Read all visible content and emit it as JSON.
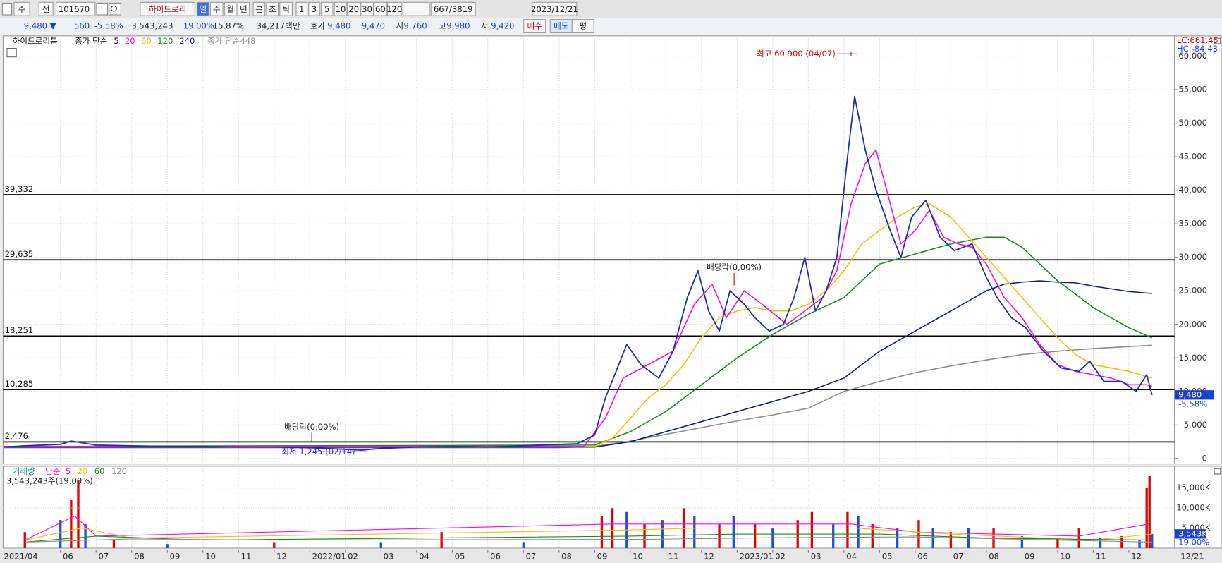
{
  "toolbar": {
    "items": [
      "주",
      "전",
      "101670",
      "하이드로리",
      "일",
      "주",
      "월",
      "년",
      "분",
      "초",
      "틱",
      "1",
      "3",
      "5",
      "10",
      "20",
      "30",
      "60",
      "120",
      "667/3819",
      "2023/12/21"
    ]
  },
  "info_bar": {
    "items": [
      "9,480 ▼",
      "560",
      "-5.58%",
      "3,543,243",
      "19.00%",
      "15.87%",
      "34,217백만",
      "호가",
      "9,480",
      "9,470",
      "시",
      "9,760",
      "고",
      "9,980",
      "저",
      "9,420",
      "매수",
      "매도",
      "평"
    ]
  },
  "chart_data": [
    {
      "type": "line",
      "title": "하이드로리튬",
      "legend_prefix": "종가 단순",
      "x_start_label": "2021/04",
      "x_end_label": "12/21",
      "lc_label": "LC:661.45",
      "hc_label": "HC:-84.43",
      "xlim": [
        0.39,
        33.28
      ],
      "xticks": [
        {
          "value": 2,
          "label": "06"
        },
        {
          "value": 3,
          "label": "07"
        },
        {
          "value": 4,
          "label": "08"
        },
        {
          "value": 5,
          "label": "09"
        },
        {
          "value": 6,
          "label": "10"
        },
        {
          "value": 7,
          "label": "11"
        },
        {
          "value": 8,
          "label": "12"
        },
        {
          "value": 9,
          "label": "2022/01"
        },
        {
          "value": 10,
          "label": "02"
        },
        {
          "value": 11,
          "label": "03"
        },
        {
          "value": 12,
          "label": "04"
        },
        {
          "value": 13,
          "label": "05"
        },
        {
          "value": 14,
          "label": "06"
        },
        {
          "value": 15,
          "label": "07"
        },
        {
          "value": 16,
          "label": "08"
        },
        {
          "value": 17,
          "label": "09"
        },
        {
          "value": 18,
          "label": "10"
        },
        {
          "value": 19,
          "label": "11"
        },
        {
          "value": 20,
          "label": "12"
        },
        {
          "value": 21,
          "label": "2023/01"
        },
        {
          "value": 22,
          "label": "02"
        },
        {
          "value": 23,
          "label": "03"
        },
        {
          "value": 24,
          "label": "04"
        },
        {
          "value": 25,
          "label": "05"
        },
        {
          "value": 26,
          "label": "06"
        },
        {
          "value": 27,
          "label": "07"
        },
        {
          "value": 28,
          "label": "08"
        },
        {
          "value": 29,
          "label": "09"
        },
        {
          "value": 30,
          "label": "10"
        },
        {
          "value": 31,
          "label": "11"
        },
        {
          "value": 32,
          "label": "12"
        }
      ],
      "ylim": [
        -814,
        63023
      ],
      "yticks": [
        0,
        {
          "value": 5000,
          "label": "5,000"
        },
        {
          "value": 10000,
          "label": "10,000"
        },
        {
          "value": 15000,
          "label": "15,000"
        },
        {
          "value": 20000,
          "label": "20,000"
        },
        {
          "value": 25000,
          "label": "25,000"
        },
        {
          "value": 30000,
          "label": "30,000"
        },
        {
          "value": 35000,
          "label": "35,000"
        },
        {
          "value": 40000,
          "label": "40,000"
        },
        {
          "value": 45000,
          "label": "45,000"
        },
        {
          "value": 50000,
          "label": "50,000"
        },
        {
          "value": 55000,
          "label": "55,000"
        },
        {
          "value": 60000,
          "label": "60,000"
        }
      ],
      "grid": true,
      "levels": [
        {
          "value": 39332,
          "label": "39,332"
        },
        {
          "value": 29635,
          "label": "29,635"
        },
        {
          "value": 18251,
          "label": "18,251"
        },
        {
          "value": 10285,
          "label": "10,285"
        },
        {
          "value": 2476,
          "label": "2,476"
        }
      ],
      "annotations": [
        "최고 60,900 (04/07)",
        "최저 1,245 (02/14)",
        "배당락(0,00%)",
        "배당락(0,00%)"
      ],
      "series": [
        {
          "name": "5",
          "color": "#1c2fa8",
          "x": [
            0.4,
            1,
            2,
            2.3,
            3,
            4,
            5,
            6,
            7,
            8,
            9,
            10.45,
            11,
            12,
            13,
            14,
            15,
            16,
            16.5,
            17,
            17.3,
            17.6,
            17.9,
            18.3,
            18.8,
            19.2,
            19.6,
            19.9,
            20.2,
            20.5,
            20.8,
            21.2,
            21.5,
            21.9,
            22.3,
            22.6,
            22.9,
            23.2,
            23.5,
            23.8,
            24.1,
            24.3,
            24.6,
            24.9,
            25.3,
            25.6,
            25.9,
            26.3,
            26.7,
            27.1,
            27.6,
            28,
            28.3,
            28.7,
            29.1,
            29.6,
            30.1,
            30.6,
            30.9,
            31.3,
            31.8,
            32.2,
            32.5,
            32.65
          ],
          "values": [
            1700,
            1900,
            2100,
            2600,
            2000,
            1900,
            1800,
            1800,
            1700,
            1700,
            1600,
            1245,
            1500,
            1700,
            1800,
            1700,
            1900,
            2100,
            2200,
            3500,
            9000,
            13000,
            17000,
            14000,
            12000,
            16000,
            24000,
            28000,
            22000,
            19000,
            25000,
            23000,
            21000,
            19000,
            20000,
            24000,
            30000,
            22000,
            25000,
            30000,
            45000,
            54000,
            46000,
            40000,
            34000,
            30000,
            36000,
            38500,
            33000,
            31000,
            32000,
            27000,
            24000,
            21000,
            19500,
            16000,
            13500,
            13000,
            14500,
            11500,
            11500,
            10000,
            12500,
            9480
          ]
        },
        {
          "name": "20",
          "color": "#ff00ff",
          "x": [
            0.4,
            8,
            16.7,
            17.3,
            17.8,
            18.5,
            19.2,
            19.8,
            20.3,
            20.7,
            21.2,
            21.7,
            22.4,
            22.9,
            23.4,
            23.8,
            24.2,
            24.6,
            24.9,
            25.3,
            25.6,
            26,
            26.4,
            26.8,
            27.2,
            27.6,
            28,
            28.5,
            29,
            29.5,
            30,
            30.5,
            31,
            31.5,
            32,
            32.5,
            32.65
          ],
          "values": [
            1800,
            1800,
            1800,
            6000,
            12000,
            14000,
            16000,
            23000,
            26000,
            21000,
            25000,
            23000,
            20000,
            22000,
            24000,
            28000,
            38000,
            44000,
            46000,
            38000,
            32000,
            34000,
            37000,
            33000,
            32000,
            31500,
            29000,
            24000,
            21000,
            17000,
            14000,
            13000,
            12500,
            12000,
            11000,
            11000,
            10800
          ]
        },
        {
          "name": "60",
          "color": "#f5c000",
          "x": [
            0.4,
            17,
            17.5,
            18,
            18.5,
            19,
            19.5,
            20,
            20.5,
            21,
            21.5,
            22,
            22.5,
            23,
            23.5,
            24,
            24.5,
            25,
            25.5,
            26,
            26.4,
            27,
            27.5,
            28,
            28.5,
            29,
            29.5,
            30,
            30.5,
            31,
            31.5,
            32,
            32.65
          ],
          "values": [
            1800,
            1800,
            3000,
            6000,
            9000,
            11000,
            14000,
            18000,
            21000,
            22000,
            22500,
            22000,
            22000,
            23000,
            25000,
            28000,
            32000,
            34000,
            36000,
            37500,
            38000,
            36000,
            33000,
            30000,
            27000,
            24000,
            21000,
            18000,
            15500,
            14000,
            13500,
            13000,
            12000
          ]
        },
        {
          "name": "120",
          "color": "#1a8a1a",
          "x": [
            0.4,
            17,
            18,
            19,
            20,
            21,
            22,
            23,
            24,
            25,
            26,
            27,
            27.5,
            28,
            28.5,
            29,
            29.5,
            30,
            30.5,
            31,
            31.5,
            32,
            32.65
          ],
          "values": [
            1800,
            2000,
            4000,
            7000,
            11000,
            15000,
            18500,
            21500,
            24000,
            29000,
            30500,
            32000,
            32500,
            33000,
            33000,
            31500,
            29000,
            26500,
            24500,
            22500,
            21000,
            19500,
            18000
          ]
        },
        {
          "name": "240",
          "color": "#0a1a80",
          "x": [
            0.4,
            17,
            18,
            19,
            20,
            21,
            22,
            23,
            24,
            25,
            26,
            27,
            28,
            28.5,
            29,
            29.5,
            30,
            30.5,
            31,
            31.5,
            32,
            32.65
          ],
          "values": [
            1700,
            1700,
            2500,
            4000,
            5500,
            7000,
            8500,
            10000,
            12000,
            16000,
            19000,
            22000,
            25000,
            26000,
            26300,
            26500,
            26300,
            26200,
            25700,
            25300,
            24900,
            24600
          ]
        },
        {
          "name": "448",
          "color": "#8c8c8c",
          "x": [
            0.4,
            16,
            17,
            18,
            19,
            20,
            21,
            22,
            23,
            24,
            25,
            26,
            27,
            28,
            29,
            30,
            31,
            32,
            32.65
          ],
          "values": [
            1600,
            1600,
            1800,
            2600,
            3600,
            4600,
            5600,
            6500,
            7500,
            10000,
            11500,
            12800,
            13800,
            14700,
            15500,
            16000,
            16400,
            16700,
            16900
          ]
        }
      ]
    },
    {
      "type": "bar",
      "title": "거래량",
      "legend_prefix": "단순",
      "info_label": "3,543,243주(19.00%)",
      "last_label": "3,543K",
      "last_value": 3543,
      "xlim": [
        0.39,
        33.28
      ],
      "ylim": [
        0,
        20400
      ],
      "yticks": [
        {
          "value": 5000,
          "label": "5,000K"
        },
        {
          "value": 10000,
          "label": "10,000K"
        },
        {
          "value": 15000,
          "label": "15,000K"
        }
      ],
      "series": [
        {
          "name": "거래량",
          "x": [
            1,
            2,
            2.3,
            2.5,
            2.7,
            3.5,
            5,
            8,
            11,
            12.7,
            15,
            17.2,
            17.5,
            17.9,
            18.4,
            18.9,
            19.5,
            19.8,
            20.5,
            20.9,
            21.5,
            22,
            22.7,
            23.1,
            23.7,
            24.1,
            24.4,
            24.8,
            25.5,
            26.1,
            26.5,
            27,
            27.5,
            28.2,
            29,
            30,
            30.6,
            31.2,
            31.8,
            32.3,
            32.5,
            32.58,
            32.65
          ],
          "values": [
            4000,
            7000,
            12000,
            17000,
            6000,
            2000,
            1000,
            1500,
            1500,
            4000,
            1500,
            8000,
            10000,
            9000,
            6000,
            7000,
            10000,
            8000,
            6000,
            8000,
            6000,
            5000,
            7000,
            9000,
            6000,
            9000,
            8000,
            6000,
            5000,
            7000,
            5000,
            4000,
            5000,
            5000,
            3000,
            2500,
            5000,
            2500,
            3000,
            2000,
            15000,
            18000,
            3543
          ],
          "colors": [
            "#e00000",
            "#1f4fd0",
            "#e00000",
            "#e00000",
            "#1f4fd0",
            "#e00000",
            "#1f4fd0",
            "#e00000",
            "#1f4fd0",
            "#e00000",
            "#1f4fd0",
            "#e00000",
            "#e00000",
            "#1f4fd0",
            "#e00000",
            "#1f4fd0",
            "#e00000",
            "#1f4fd0",
            "#e00000",
            "#1f4fd0",
            "#e00000",
            "#1f4fd0",
            "#e00000",
            "#e00000",
            "#1f4fd0",
            "#e00000",
            "#1f4fd0",
            "#e00000",
            "#1f4fd0",
            "#e00000",
            "#1f4fd0",
            "#e00000",
            "#1f4fd0",
            "#e00000",
            "#1f4fd0",
            "#e00000",
            "#e00000",
            "#1f4fd0",
            "#e00000",
            "#1f4fd0",
            "#e00000",
            "#e00000",
            "#1f4fd0"
          ],
          "color": "#138f8f"
        },
        {
          "name": "5",
          "color": "#ff00ff",
          "x": [
            1,
            2.4,
            3,
            17.5,
            19.6,
            24.2,
            26,
            30.6,
            32.55
          ],
          "values": [
            2000,
            8000,
            3000,
            6000,
            6000,
            6000,
            4000,
            3000,
            6000
          ]
        },
        {
          "name": "20",
          "color": "#f5c000",
          "x": [
            1,
            2.6,
            4,
            17.8,
            20,
            24.3,
            27,
            31,
            32.65
          ],
          "values": [
            2000,
            5000,
            2500,
            4500,
            5000,
            5000,
            3500,
            2000,
            3500
          ]
        },
        {
          "name": "60",
          "color": "#1a8a1a",
          "x": [
            1,
            3,
            6,
            18,
            21,
            25,
            28,
            32.65
          ],
          "values": [
            1500,
            3000,
            2000,
            3000,
            3500,
            3500,
            2500,
            2000
          ]
        },
        {
          "name": "120",
          "color": "#8c8c8c",
          "x": [
            1,
            4,
            8,
            18.5,
            22,
            26,
            30,
            32.65
          ],
          "values": [
            1500,
            2300,
            2000,
            2200,
            2600,
            2800,
            2000,
            1500
          ]
        }
      ]
    }
  ]
}
